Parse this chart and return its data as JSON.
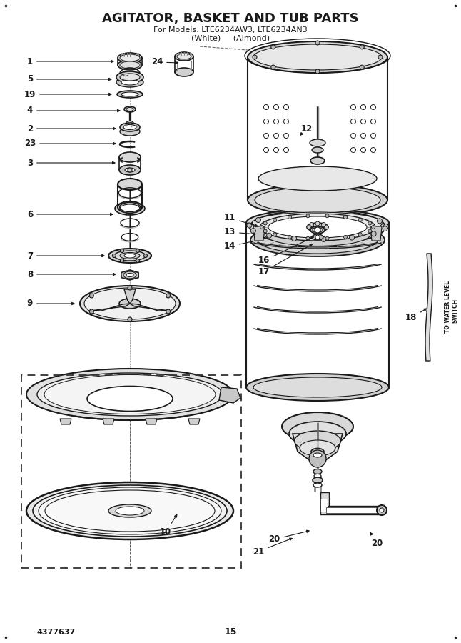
{
  "title": "AGITATOR, BASKET AND TUB PARTS",
  "subtitle": "For Models: LTE6234AW3, LTE6234AN3",
  "subtitle2": "(White)     (Almond)",
  "part_number": "4377637",
  "page_number": "15",
  "bg_color": "#ffffff",
  "line_color": "#1a1a1a",
  "title_fontsize": 13,
  "subtitle_fontsize": 8,
  "label_fontsize": 8.5,
  "footer_fontsize": 8
}
